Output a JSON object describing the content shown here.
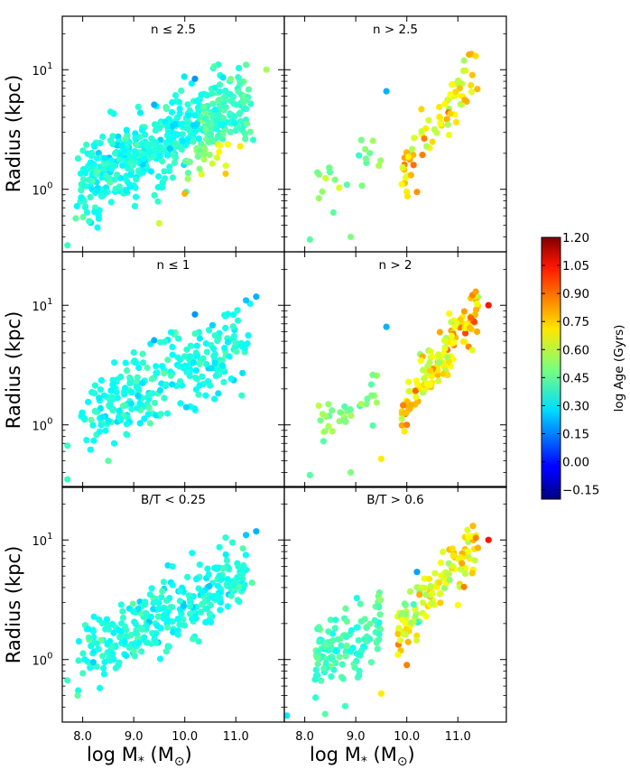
{
  "figure": {
    "ylabel": "Radius (kpc)",
    "xlabel": "log M",
    "xlabel_sub": "*",
    "xlabel_unit": "M",
    "xlabel_unit_sub": "⊙"
  },
  "chart_data": {
    "type": "scatter",
    "xscale": "linear",
    "yscale": "log",
    "xlim": [
      7.6,
      11.95
    ],
    "ylim": [
      0.3,
      28
    ],
    "xticks": [
      8.0,
      9.0,
      10.0,
      11.0
    ],
    "xtick_labels": [
      "8.0",
      "9.0",
      "10.0",
      "11.0"
    ],
    "yticks": [
      1,
      10
    ],
    "ytick_labels": [
      "10^0",
      "10^1"
    ],
    "colorbar": {
      "label": "log Age (Gyrs)",
      "min": -0.2,
      "max": 1.2,
      "ticks": [
        1.2,
        1.05,
        0.9,
        0.75,
        0.6,
        0.45,
        0.3,
        0.15,
        0.0,
        -0.15
      ],
      "tick_labels": [
        "1.20",
        "1.05",
        "0.90",
        "0.75",
        "0.60",
        "0.45",
        "0.30",
        "0.15",
        "0.00",
        "−0.15"
      ]
    },
    "panels": [
      {
        "title": "n ≤ 2.5",
        "row": 0,
        "col": 0,
        "seed": 11,
        "n": 560,
        "mode": "low",
        "points": [
          [
            9.4,
            5.1,
            0.22
          ],
          [
            10.2,
            8.4,
            0.18
          ],
          [
            11.2,
            11,
            0.45
          ],
          [
            11.6,
            10,
            0.55
          ],
          [
            10.8,
            1.35,
            0.75
          ],
          [
            10.0,
            0.92,
            0.78
          ],
          [
            7.7,
            0.34,
            0.4
          ],
          [
            9.5,
            0.52,
            0.6
          ]
        ]
      },
      {
        "title": "n > 2.5",
        "row": 0,
        "col": 1,
        "seed": 23,
        "n": 95,
        "mode": "high",
        "points": [
          [
            9.6,
            6.6,
            0.22
          ],
          [
            8.1,
            0.38,
            0.45
          ],
          [
            8.9,
            0.4,
            0.5
          ],
          [
            10.2,
            0.95,
            0.82
          ],
          [
            11.35,
            13,
            0.72
          ],
          [
            9.9,
            1.1,
            0.68
          ]
        ]
      },
      {
        "title": "n ≤  1",
        "row": 1,
        "col": 0,
        "seed": 37,
        "n": 280,
        "mode": "low1",
        "points": [
          [
            9.4,
            5.1,
            0.22
          ],
          [
            10.2,
            8.4,
            0.18
          ],
          [
            11.2,
            11,
            0.25
          ],
          [
            11.4,
            11.8,
            0.22
          ],
          [
            7.7,
            0.35,
            0.4
          ],
          [
            7.7,
            0.67,
            0.4
          ],
          [
            8.5,
            0.5,
            0.45
          ]
        ]
      },
      {
        "title": "n > 2",
        "row": 1,
        "col": 1,
        "seed": 41,
        "n": 170,
        "mode": "high2",
        "points": [
          [
            9.6,
            6.6,
            0.22
          ],
          [
            8.1,
            0.38,
            0.45
          ],
          [
            8.9,
            0.4,
            0.5
          ],
          [
            9.5,
            0.52,
            0.7
          ],
          [
            11.6,
            10,
            1.0
          ],
          [
            11.35,
            13,
            0.8
          ],
          [
            10.0,
            1.0,
            0.85
          ]
        ]
      },
      {
        "title": "B/T < 0.25",
        "row": 2,
        "col": 0,
        "seed": 53,
        "n": 310,
        "mode": "low1",
        "points": [
          [
            11.2,
            11,
            0.25
          ],
          [
            11.4,
            11.8,
            0.22
          ],
          [
            7.7,
            0.67,
            0.4
          ],
          [
            7.9,
            0.5,
            0.45
          ]
        ]
      },
      {
        "title": "B/T > 0.6",
        "row": 2,
        "col": 1,
        "seed": 67,
        "n": 250,
        "mode": "bt",
        "points": [
          [
            7.65,
            0.34,
            0.3
          ],
          [
            10.2,
            5.4,
            0.2
          ],
          [
            11.6,
            10,
            1.0
          ],
          [
            11.35,
            10.4,
            0.85
          ],
          [
            10.0,
            0.9,
            0.85
          ],
          [
            9.5,
            0.52,
            0.7
          ],
          [
            8.4,
            0.35,
            0.45
          ]
        ]
      }
    ]
  }
}
